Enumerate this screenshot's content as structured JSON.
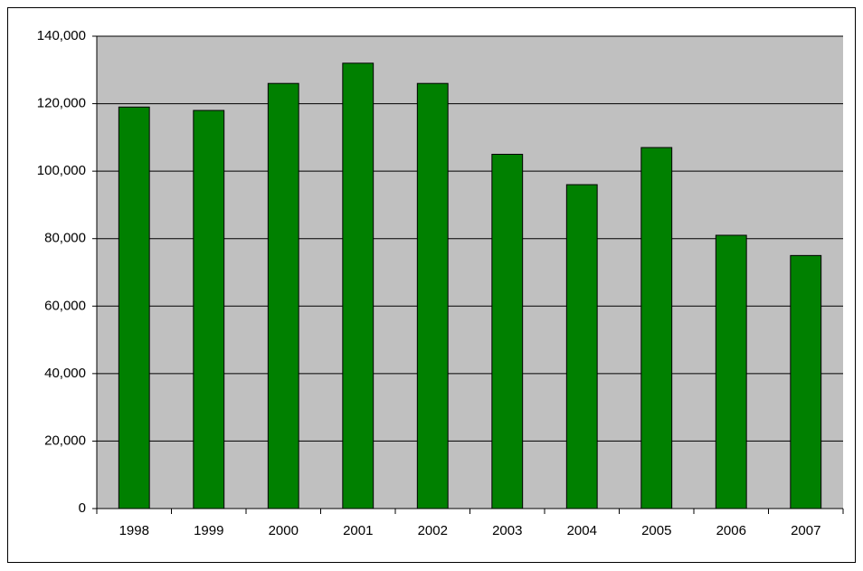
{
  "chart_data": {
    "type": "bar",
    "categories": [
      "1998",
      "1999",
      "2000",
      "2001",
      "2002",
      "2003",
      "2004",
      "2005",
      "2006",
      "2007"
    ],
    "values": [
      119000,
      118000,
      126000,
      132000,
      126000,
      105000,
      96000,
      107000,
      81000,
      75000
    ],
    "color": "#008000",
    "ylim": [
      0,
      140000
    ],
    "yticks": [
      0,
      {
        "value": 20000,
        "label": "20,000"
      },
      {
        "value": 40000,
        "label": "40,000"
      },
      {
        "value": 60000,
        "label": "60,000"
      },
      {
        "value": 80000,
        "label": "80,000"
      },
      {
        "value": 100000,
        "label": "100,000"
      },
      {
        "value": 120000,
        "label": "120,000"
      },
      {
        "value": 140000,
        "label": "140,000"
      }
    ],
    "grid": true
  }
}
